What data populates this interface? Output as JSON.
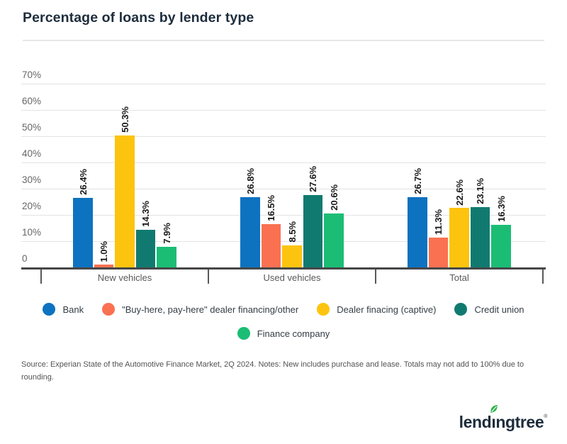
{
  "title": "Percentage of loans by lender type",
  "chart_data": {
    "type": "bar",
    "title": "Percentage of loans by lender type",
    "categories": [
      "New vehicles",
      "Used vehicles",
      "Total"
    ],
    "series": [
      {
        "name": "Bank",
        "color": "#0d72c0",
        "values": [
          26.4,
          26.8,
          26.7
        ]
      },
      {
        "name": "\"Buy-here, pay-here\" dealer financing/other",
        "color": "#fa7152",
        "values": [
          1.0,
          16.5,
          11.3
        ]
      },
      {
        "name": "Dealer finacing (captive)",
        "color": "#fdc40f",
        "values": [
          50.3,
          8.5,
          22.6
        ]
      },
      {
        "name": "Credit union",
        "color": "#117a70",
        "values": [
          14.3,
          27.6,
          23.1
        ]
      },
      {
        "name": "Finance company",
        "color": "#1bbd75",
        "values": [
          7.9,
          20.6,
          16.3
        ]
      }
    ],
    "value_label_suffix": "%",
    "y_ticks": [
      {
        "label": "70%",
        "value": 70
      },
      {
        "label": "60%",
        "value": 60
      },
      {
        "label": "50%",
        "value": 50
      },
      {
        "label": "40%",
        "value": 40
      },
      {
        "label": "30%",
        "value": 30
      },
      {
        "label": "20%",
        "value": 20
      },
      {
        "label": "10%",
        "value": 10
      },
      {
        "label": "0",
        "value": 0
      }
    ],
    "ylim": [
      0,
      70
    ],
    "grid": "horizontal",
    "legend_position": "bottom",
    "bar_label_rotation": -90
  },
  "source_note": "Source: Experian State of the Automotive Finance Market, 2Q 2024. Notes: New includes purchase and lease. Totals may not add to 100% due to rounding.",
  "logo": {
    "brand": "lendingtree",
    "part1": "lend",
    "dotless_i": "ı",
    "part2": "ngtree",
    "registered": "®"
  },
  "colors": {
    "title": "#1e2d3d",
    "axis_line": "#474747",
    "gridline": "#e3e3e3",
    "tick_label": "#666666",
    "category_label": "#595959",
    "separator": "#595959",
    "bar_value_label": "#1a1a1a",
    "legend_text": "#333d47",
    "source_text": "#525252",
    "logo_text": "#1d2c3b",
    "leaf_green": "#2cb34a"
  }
}
